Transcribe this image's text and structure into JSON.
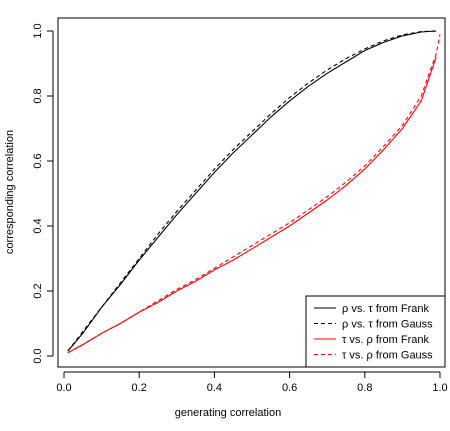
{
  "chart_data": {
    "type": "line",
    "xlabel": "generating correlation",
    "ylabel": "corresponding correlation",
    "xlim": [
      0,
      1
    ],
    "ylim": [
      0,
      1
    ],
    "x_ticks": [
      "0.0",
      "0.2",
      "0.4",
      "0.6",
      "0.8",
      "1.0"
    ],
    "y_ticks": [
      "0.0",
      "0.2",
      "0.4",
      "0.6",
      "0.8",
      "1.0"
    ],
    "grid": false,
    "legend_position": "bottom-right",
    "series": [
      {
        "name": "ρ vs. τ from Frank",
        "color": "#000000",
        "dash": "solid",
        "x": [
          0.01,
          0.05,
          0.1,
          0.15,
          0.2,
          0.25,
          0.3,
          0.35,
          0.4,
          0.45,
          0.5,
          0.55,
          0.6,
          0.65,
          0.7,
          0.75,
          0.8,
          0.85,
          0.9,
          0.95,
          0.99
        ],
        "y": [
          0.015,
          0.07,
          0.15,
          0.22,
          0.295,
          0.365,
          0.435,
          0.5,
          0.565,
          0.625,
          0.68,
          0.735,
          0.785,
          0.83,
          0.87,
          0.905,
          0.94,
          0.965,
          0.985,
          0.997,
          1.0
        ]
      },
      {
        "name": "ρ vs. τ from Gauss",
        "color": "#000000",
        "dash": "dashed",
        "x": [
          0.01,
          0.05,
          0.1,
          0.15,
          0.2,
          0.25,
          0.3,
          0.35,
          0.4,
          0.45,
          0.5,
          0.55,
          0.6,
          0.65,
          0.7,
          0.75,
          0.8,
          0.85,
          0.9,
          0.95,
          0.99
        ],
        "y": [
          0.015,
          0.075,
          0.15,
          0.225,
          0.3,
          0.375,
          0.445,
          0.51,
          0.575,
          0.635,
          0.69,
          0.745,
          0.795,
          0.84,
          0.88,
          0.915,
          0.945,
          0.97,
          0.988,
          0.998,
          1.0
        ]
      },
      {
        "name": "τ vs. ρ from Frank",
        "color": "#ff0000",
        "dash": "solid",
        "x": [
          0.01,
          0.05,
          0.1,
          0.15,
          0.2,
          0.25,
          0.3,
          0.35,
          0.4,
          0.45,
          0.5,
          0.55,
          0.6,
          0.65,
          0.7,
          0.75,
          0.8,
          0.85,
          0.9,
          0.95,
          0.99
        ],
        "y": [
          0.01,
          0.035,
          0.07,
          0.1,
          0.135,
          0.165,
          0.2,
          0.23,
          0.265,
          0.295,
          0.33,
          0.365,
          0.4,
          0.44,
          0.48,
          0.525,
          0.575,
          0.635,
          0.7,
          0.785,
          0.92
        ]
      },
      {
        "name": "τ vs. ρ from Gauss",
        "color": "#ff0000",
        "dash": "dashed",
        "x": [
          0.01,
          0.05,
          0.1,
          0.15,
          0.2,
          0.25,
          0.3,
          0.35,
          0.4,
          0.45,
          0.5,
          0.55,
          0.6,
          0.65,
          0.7,
          0.75,
          0.8,
          0.85,
          0.9,
          0.95,
          0.99,
          1.0
        ],
        "y": [
          0.01,
          0.035,
          0.07,
          0.1,
          0.135,
          0.17,
          0.205,
          0.235,
          0.27,
          0.305,
          0.34,
          0.375,
          0.41,
          0.45,
          0.49,
          0.535,
          0.585,
          0.645,
          0.71,
          0.8,
          0.93,
          0.99
        ]
      }
    ]
  }
}
